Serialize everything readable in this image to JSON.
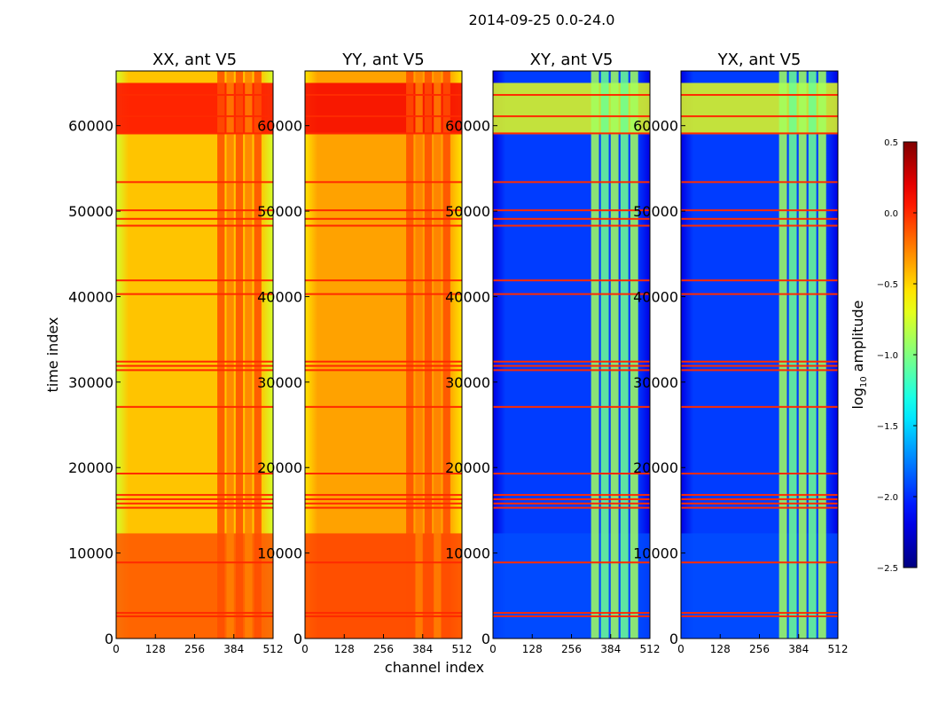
{
  "chart_data": {
    "type": "heatmap",
    "title": "2014-09-25 0.0-24.0",
    "xlabel": "channel index",
    "ylabel": "time index",
    "xlim": [
      0,
      512
    ],
    "ylim": [
      0,
      66400
    ],
    "xticks": [
      0,
      128,
      256,
      384,
      512
    ],
    "yticks": [
      0,
      10000,
      20000,
      30000,
      40000,
      50000,
      60000
    ],
    "panels": [
      {
        "title": "XX, ant V5",
        "base": -0.45,
        "edge": -0.75,
        "column_region": [
          330,
          480
        ],
        "column_value": -0.1,
        "low_region": [
          0,
          12300
        ],
        "low_value": -0.1,
        "top_region": [
          59000,
          65000
        ],
        "top_value": 0.1
      },
      {
        "title": "YY, ant V5",
        "base": -0.35,
        "edge": -0.55,
        "column_region": [
          330,
          480
        ],
        "column_value": -0.1,
        "low_region": [
          0,
          12300
        ],
        "low_value": -0.05,
        "top_region": [
          59000,
          65000
        ],
        "top_value": 0.15
      },
      {
        "title": "XY, ant V5",
        "base": -1.95,
        "edge": -2.2,
        "column_region": [
          320,
          480
        ],
        "column_value": -0.9,
        "low_region": [
          0,
          12300
        ],
        "low_value": -1.9,
        "top_region": [
          59000,
          65000
        ],
        "top_value": -0.7
      },
      {
        "title": "YX, ant V5",
        "base": -1.95,
        "edge": -2.2,
        "column_region": [
          320,
          480
        ],
        "column_value": -0.9,
        "low_region": [
          0,
          12300
        ],
        "low_value": -1.9,
        "top_region": [
          59000,
          65000
        ],
        "top_value": -0.7
      }
    ],
    "flagged_rows": [
      2500,
      2900,
      8800,
      15200,
      15700,
      16200,
      16700,
      19200,
      27000,
      31300,
      31800,
      32300,
      40200,
      41800,
      48200,
      49000,
      50000,
      53300,
      59000,
      61000,
      63500
    ],
    "flag_value": 0.0,
    "colorbar": {
      "label": "log10 amplitude",
      "range": [
        -2.5,
        0.5
      ],
      "ticks": [
        "0.5",
        "0.0",
        "−0.5",
        "−1.0",
        "−1.5",
        "−2.0",
        "−2.5"
      ],
      "tick_values": [
        0.5,
        0.0,
        -0.5,
        -1.0,
        -1.5,
        -2.0,
        -2.5
      ],
      "colormap": "jet"
    }
  }
}
